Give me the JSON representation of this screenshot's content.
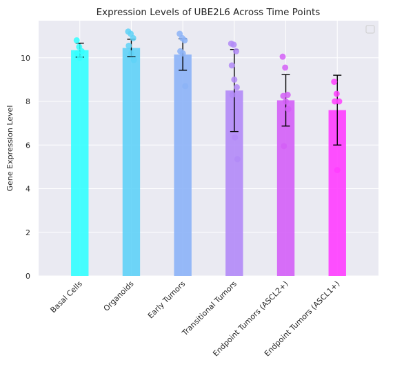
{
  "chart_data": {
    "type": "bar",
    "title": "Expression Levels of UBE2L6 Across Time Points",
    "xlabel": "",
    "ylabel": "Gene Expression Level",
    "ylim": [
      0,
      11.7
    ],
    "yticks": [
      0,
      2,
      4,
      6,
      8,
      10
    ],
    "grid": true,
    "legend": "top-right",
    "categories": [
      "Basal Cells",
      "Organoids",
      "Early Tumors",
      "Transitional Tumors",
      "Endpoint Tumors (ASCL2+)",
      "Endpoint Tumors (ASCL1+)"
    ],
    "values": [
      10.35,
      10.45,
      10.15,
      8.5,
      8.05,
      7.6
    ],
    "errors": [
      0.32,
      0.4,
      0.72,
      1.88,
      1.18,
      1.6
    ],
    "colors": [
      "#33ffff",
      "#5fd2f7",
      "#8cb3f7",
      "#b28af7",
      "#d45ff7",
      "#ff3dff"
    ],
    "points": [
      [
        10.8,
        10.5,
        10.3,
        10.2,
        10.0
      ],
      [
        11.2,
        11.1,
        10.9,
        10.55,
        10.2,
        9.9
      ],
      [
        11.1,
        10.9,
        10.8,
        10.3,
        10.2,
        8.7
      ],
      [
        10.65,
        10.6,
        10.3,
        9.65,
        9.0,
        8.65,
        8.3,
        6.35,
        5.35
      ],
      [
        10.05,
        9.55,
        8.3,
        8.25,
        8.0,
        7.65,
        5.95
      ],
      [
        8.9,
        8.35,
        8.0,
        8.0,
        4.85
      ]
    ]
  }
}
